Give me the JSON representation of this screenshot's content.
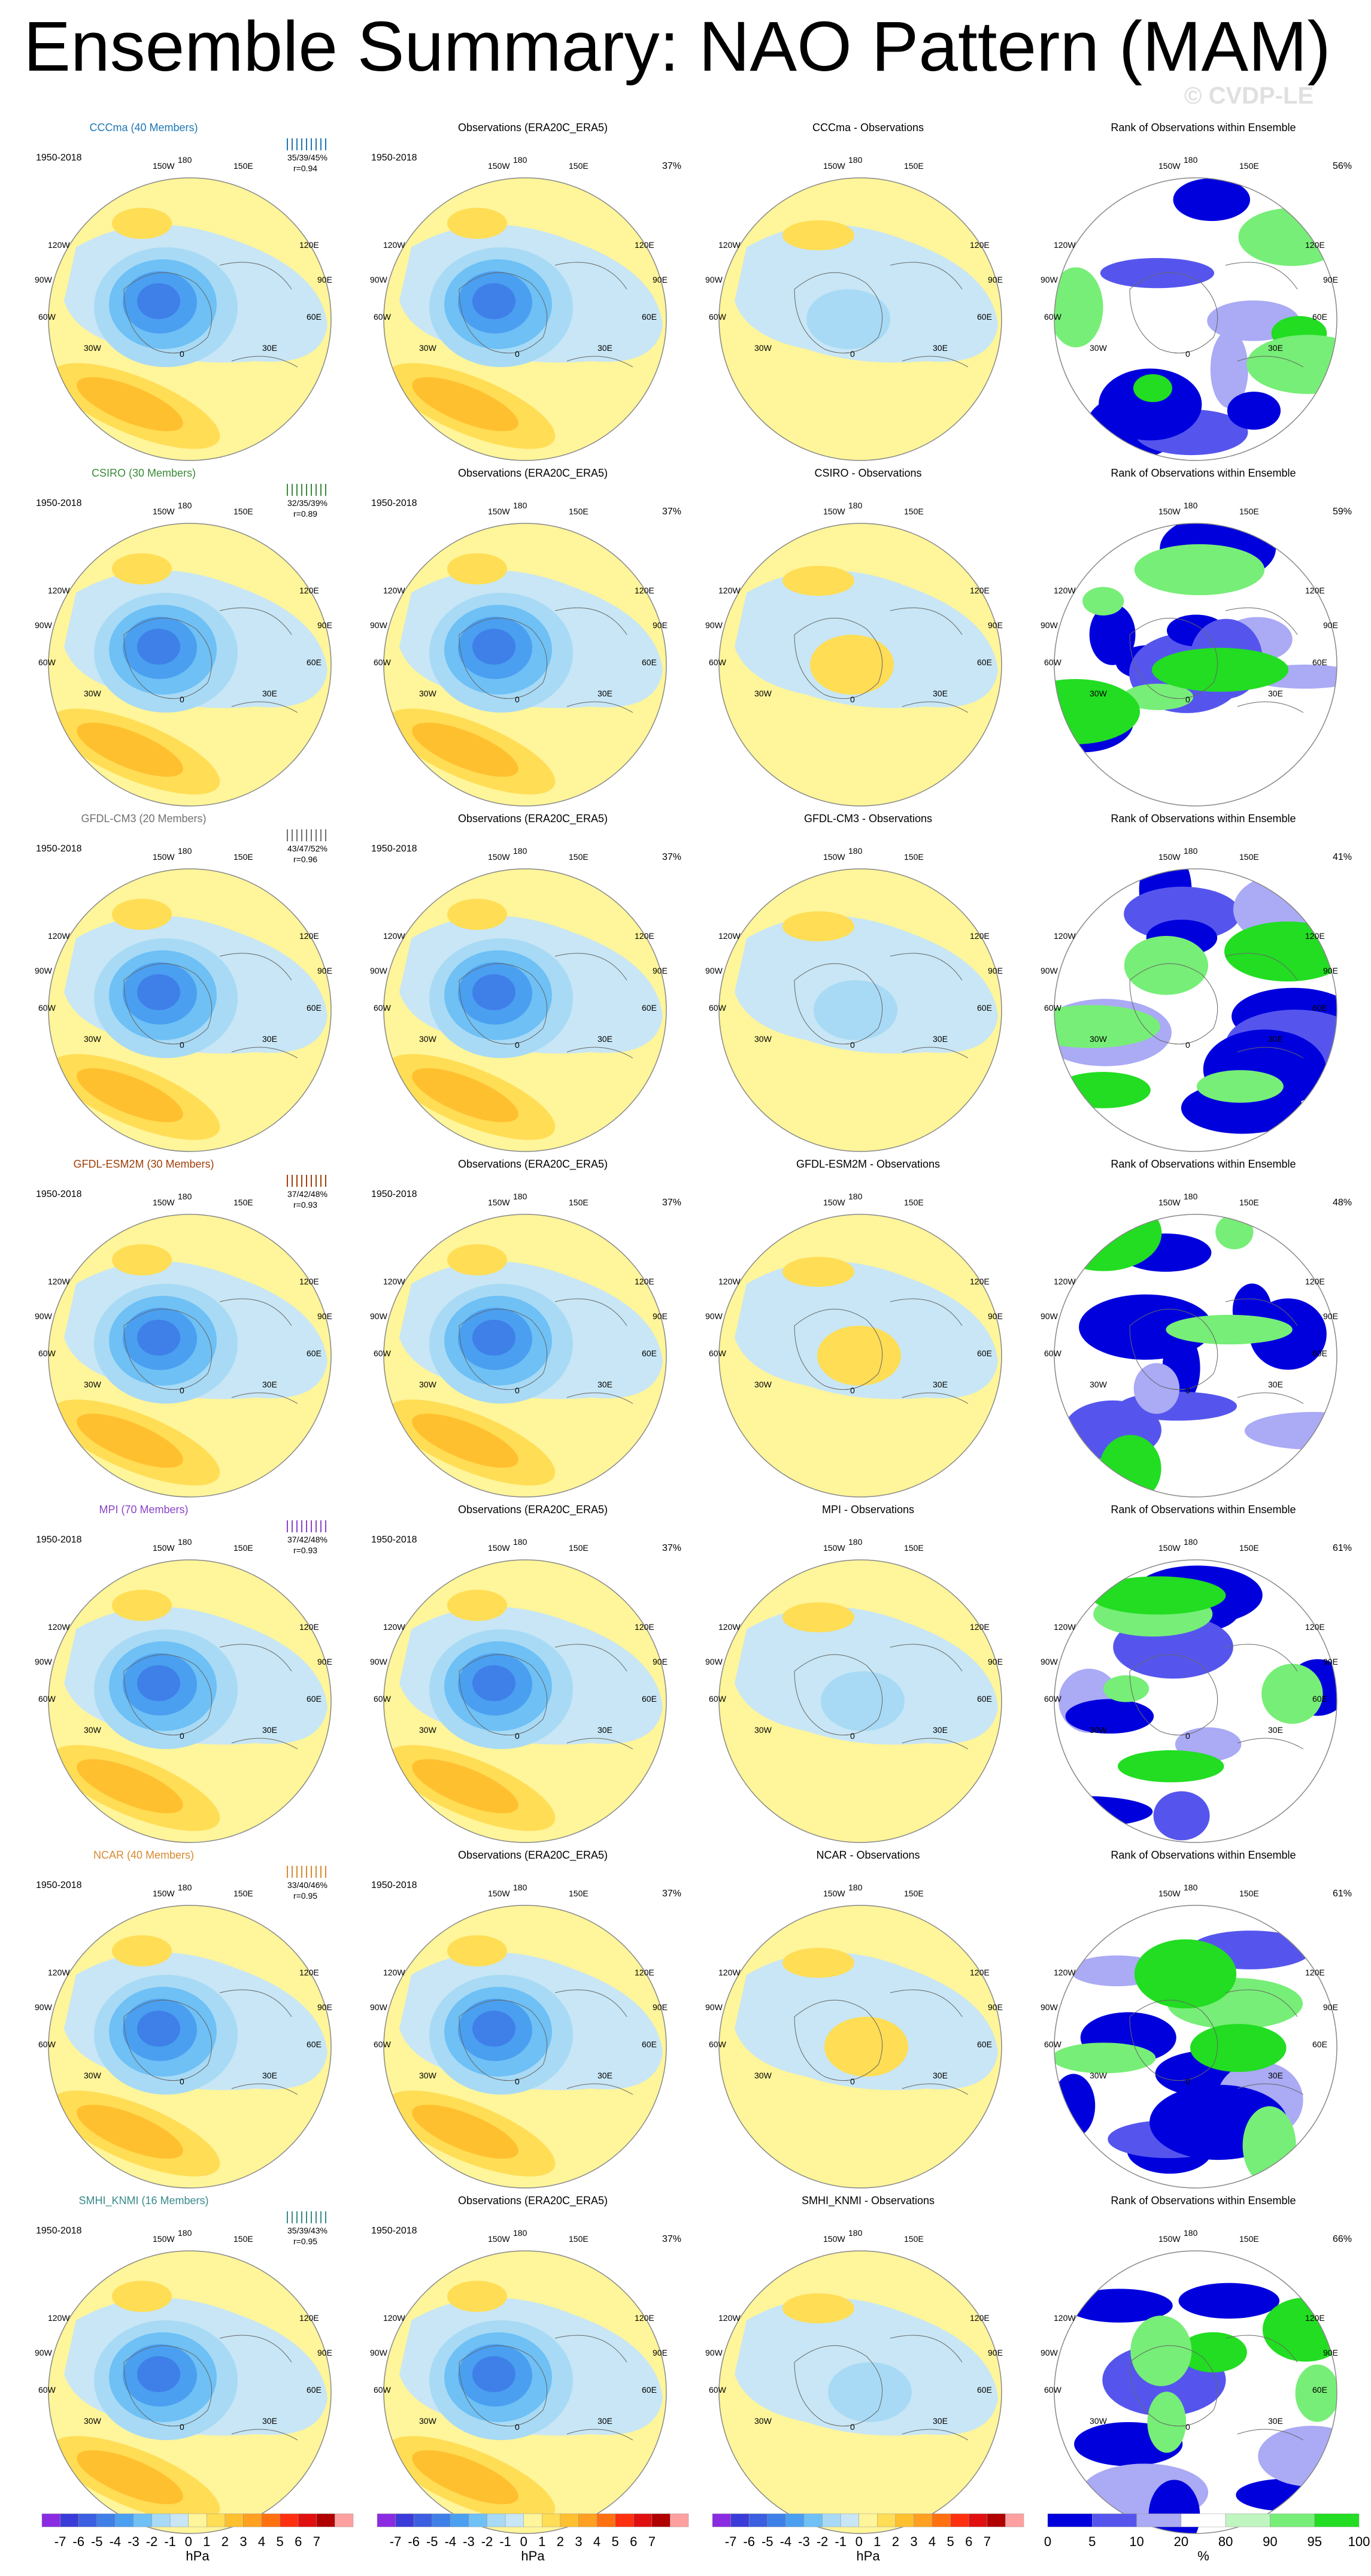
{
  "title": "Ensemble Summary: NAO Pattern (MAM)",
  "watermark": "© CVDP-LE",
  "period": "1950-2018",
  "obs_pct": "37%",
  "geo_labels": [
    "180",
    "150W",
    "150E",
    "120W",
    "120E",
    "90W",
    "90E",
    "60W",
    "60E",
    "30W",
    "30E",
    "0"
  ],
  "obs_title": "Observations (ERA20C_ERA5)",
  "rows": [
    {
      "model": "CCCma (40 Members)",
      "color": "#1f77b4",
      "stat1": "35/39/45%",
      "stat2": "r=0.94",
      "diff": "CCCma - Observations",
      "rank": "Rank of Observations within Ensemble",
      "rank_pct": "56%"
    },
    {
      "model": "CSIRO (30 Members)",
      "color": "#3a8a3a",
      "stat1": "32/35/39%",
      "stat2": "r=0.89",
      "diff": "CSIRO - Observations",
      "rank": "Rank of Observations within Ensemble",
      "rank_pct": "59%"
    },
    {
      "model": "GFDL-CM3 (20 Members)",
      "color": "#707070",
      "stat1": "43/47/52%",
      "stat2": "r=0.96",
      "diff": "GFDL-CM3 - Observations",
      "rank": "Rank of Observations within Ensemble",
      "rank_pct": "41%"
    },
    {
      "model": "GFDL-ESM2M (30 Members)",
      "color": "#a0400a",
      "stat1": "37/42/48%",
      "stat2": "r=0.93",
      "diff": "GFDL-ESM2M - Observations",
      "rank": "Rank of Observations within Ensemble",
      "rank_pct": "48%"
    },
    {
      "model": "MPI (70 Members)",
      "color": "#8a44c8",
      "stat1": "37/42/48%",
      "stat2": "r=0.93",
      "diff": "MPI - Observations",
      "rank": "Rank of Observations within Ensemble",
      "rank_pct": "61%"
    },
    {
      "model": "NCAR (40 Members)",
      "color": "#d88a30",
      "stat1": "33/40/46%",
      "stat2": "r=0.95",
      "diff": "NCAR - Observations",
      "rank": "Rank of Observations within Ensemble",
      "rank_pct": "61%"
    },
    {
      "model": "SMHI_KNMI (16 Members)",
      "color": "#3a8a8a",
      "stat1": "35/39/43%",
      "stat2": "r=0.95",
      "diff": "SMHI_KNMI - Observations",
      "rank": "Rank of Observations within Ensemble",
      "rank_pct": "66%"
    }
  ],
  "hpa_bar": {
    "ticks": [
      "-7",
      "-6",
      "-5",
      "-4",
      "-3",
      "-2",
      "-1",
      "0",
      "1",
      "2",
      "3",
      "4",
      "5",
      "6",
      "7"
    ],
    "unit": "hPa",
    "colors": [
      "#8a2be2",
      "#3b3bd9",
      "#3b5fe0",
      "#3f7fe8",
      "#4a9ff0",
      "#6ec0f5",
      "#a8daf5",
      "#c8e6f5",
      "#fff59a",
      "#ffdd55",
      "#ffc030",
      "#ffa020",
      "#ff7010",
      "#ff3010",
      "#e01010",
      "#b00000",
      "#ffa0a0"
    ]
  },
  "rank_bar": {
    "ticks": [
      "0",
      "5",
      "10",
      "20",
      "80",
      "90",
      "95",
      "100"
    ],
    "unit": "%",
    "colors": [
      "#0000dd",
      "#5555ee",
      "#aaaaf5",
      "#ffffff",
      "#c0f5c0",
      "#77ee77",
      "#22dd22"
    ]
  }
}
